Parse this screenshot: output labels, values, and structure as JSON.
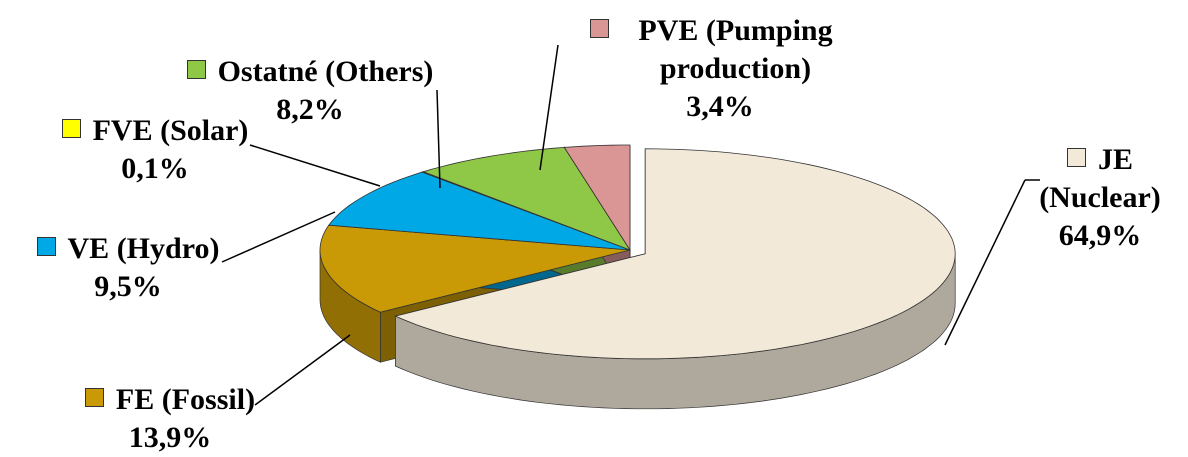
{
  "chart_data": {
    "type": "pie",
    "categories": [
      "JE (Nuclear)",
      "FE (Fossil)",
      "VE (Hydro)",
      "FVE (Solar)",
      "Ostatné (Others)",
      "PVE (Pumping production)"
    ],
    "values": [
      64.9,
      13.9,
      9.5,
      0.1,
      8.2,
      3.4
    ],
    "value_labels": [
      "64,9%",
      "13,9%",
      "9,5%",
      "0,1%",
      "8,2%",
      "3,4%"
    ],
    "colors": [
      "#f3e9d9",
      "#c99a06",
      "#00a8e6",
      "#ffff00",
      "#8fc747",
      "#d99694"
    ]
  }
}
